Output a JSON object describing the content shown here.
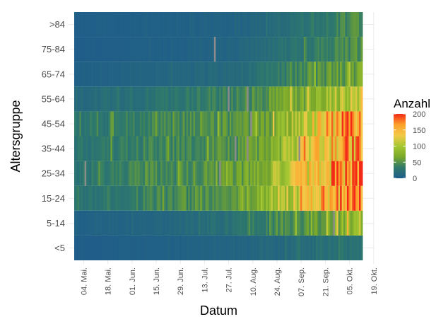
{
  "chart_data": {
    "type": "heatmap",
    "xlabel": "Datum",
    "ylabel": "Altersgruppe",
    "legend": {
      "title": "Anzahl",
      "ticks": [
        "200",
        "150",
        "100",
        "50",
        "0"
      ],
      "tick_values": [
        200,
        150,
        100,
        50,
        0
      ],
      "range": [
        0,
        200
      ],
      "colors": [
        "#1f5c8b",
        "#2f7a6b",
        "#7aa82a",
        "#a6c832",
        "#f3c948",
        "#fda12a",
        "#f22a17"
      ],
      "placement": "right"
    },
    "y_categories": [
      "<5",
      "5-14",
      "15-24",
      "25-34",
      "35-44",
      "45-54",
      "55-64",
      "65-74",
      "75-84",
      ">84"
    ],
    "x_ticks": [
      "04. Mai.",
      "18. Mai.",
      "01. Jun.",
      "15. Jun.",
      "29. Jun.",
      "13. Jul.",
      "27. Jul.",
      "10. Aug.",
      "24. Aug.",
      "07. Sep.",
      "21. Sep.",
      "05. Okt.",
      "19. Okt."
    ],
    "x_start": "2020-04-29",
    "x_end": "2020-10-12",
    "missing_color": "#8c8c8c",
    "approx_values_by_group": {
      "<5": {
        "time_anchors": [
          "2020-04-29",
          "2020-06-15",
          "2020-08-01",
          "2020-09-01",
          "2020-10-12"
        ],
        "values": [
          2,
          5,
          10,
          15,
          25
        ]
      },
      "5-14": {
        "time_anchors": [
          "2020-04-29",
          "2020-06-15",
          "2020-08-01",
          "2020-09-01",
          "2020-09-20",
          "2020-10-12"
        ],
        "values": [
          5,
          10,
          25,
          45,
          60,
          95
        ]
      },
      "15-24": {
        "time_anchors": [
          "2020-04-29",
          "2020-06-15",
          "2020-08-01",
          "2020-08-20",
          "2020-09-10",
          "2020-09-25",
          "2020-10-12"
        ],
        "values": [
          25,
          40,
          55,
          90,
          120,
          160,
          175
        ]
      },
      "25-34": {
        "time_anchors": [
          "2020-04-29",
          "2020-06-15",
          "2020-08-01",
          "2020-08-20",
          "2020-09-10",
          "2020-09-25",
          "2020-10-12"
        ],
        "values": [
          25,
          45,
          55,
          85,
          135,
          160,
          180
        ]
      },
      "35-44": {
        "time_anchors": [
          "2020-04-29",
          "2020-06-15",
          "2020-08-01",
          "2020-08-20",
          "2020-09-10",
          "2020-09-25",
          "2020-10-12"
        ],
        "values": [
          25,
          40,
          50,
          70,
          120,
          140,
          165
        ]
      },
      "45-54": {
        "time_anchors": [
          "2020-04-29",
          "2020-06-15",
          "2020-08-01",
          "2020-08-20",
          "2020-09-10",
          "2020-09-25",
          "2020-10-12"
        ],
        "values": [
          25,
          40,
          50,
          65,
          120,
          150,
          180
        ]
      },
      "55-64": {
        "time_anchors": [
          "2020-04-29",
          "2020-06-15",
          "2020-08-01",
          "2020-09-01",
          "2020-09-25",
          "2020-10-12"
        ],
        "values": [
          15,
          25,
          40,
          65,
          95,
          115
        ]
      },
      "65-74": {
        "time_anchors": [
          "2020-04-29",
          "2020-06-15",
          "2020-08-01",
          "2020-09-01",
          "2020-09-25",
          "2020-10-12"
        ],
        "values": [
          5,
          10,
          15,
          35,
          55,
          65
        ]
      },
      "75-84": {
        "time_anchors": [
          "2020-04-29",
          "2020-06-15",
          "2020-08-01",
          "2020-09-01",
          "2020-09-25",
          "2020-10-12"
        ],
        "values": [
          2,
          5,
          10,
          25,
          40,
          50
        ]
      },
      ">84": {
        "time_anchors": [
          "2020-04-29",
          "2020-06-15",
          "2020-08-01",
          "2020-09-01",
          "2020-09-25",
          "2020-10-12"
        ],
        "values": [
          3,
          5,
          8,
          20,
          35,
          50
        ]
      }
    }
  }
}
